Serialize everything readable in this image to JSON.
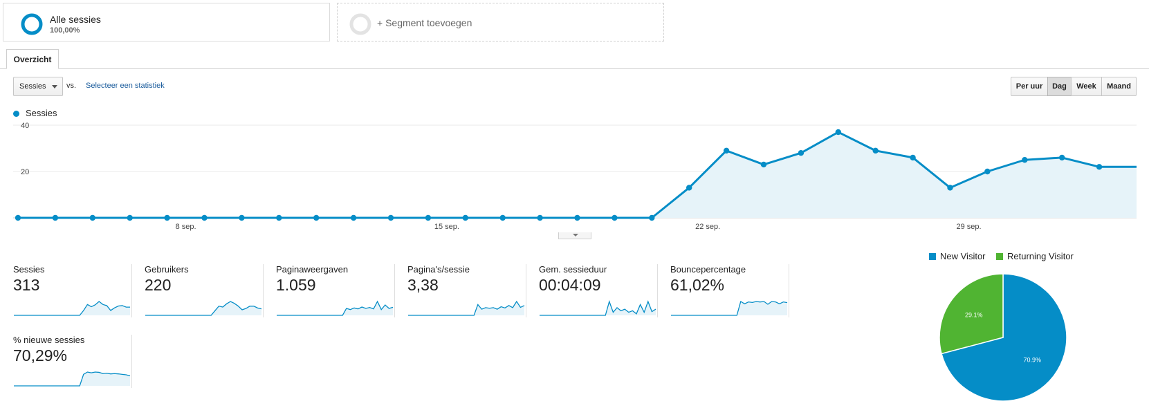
{
  "segments": {
    "active": {
      "name": "Alle sessies",
      "percent": "100,00%"
    },
    "add_label": "+ Segment toevoegen"
  },
  "tabs": {
    "overview": "Overzicht"
  },
  "controls": {
    "metric_select": "Sessies",
    "vs": "vs.",
    "select_stat": "Selecteer een statistiek",
    "periods": [
      "Per uur",
      "Dag",
      "Week",
      "Maand"
    ],
    "selected_period": "Dag"
  },
  "colors": {
    "primary": "#058dc7",
    "area_fill": "#e6f3f9",
    "returning": "#50b432"
  },
  "chart_data": [
    {
      "type": "area",
      "legend": [
        "Sessies"
      ],
      "yticks": [
        20,
        40
      ],
      "ylim": [
        0,
        40
      ],
      "xticks": [
        "8 sep.",
        "15 sep.",
        "22 sep.",
        "29 sep."
      ],
      "x": [
        "4 sep.",
        "5 sep.",
        "6 sep.",
        "7 sep.",
        "8 sep.",
        "9 sep.",
        "10 sep.",
        "11 sep.",
        "12 sep.",
        "13 sep.",
        "14 sep.",
        "15 sep.",
        "16 sep.",
        "17 sep.",
        "18 sep.",
        "19 sep.",
        "20 sep.",
        "21 sep.",
        "22 sep.",
        "23 sep.",
        "24 sep.",
        "25 sep.",
        "26 sep.",
        "27 sep.",
        "28 sep.",
        "29 sep.",
        "30 sep.",
        "1 okt.",
        "2 okt.",
        "3 okt.",
        "4 okt."
      ],
      "series": [
        {
          "name": "Sessies",
          "values": [
            0,
            0,
            0,
            0,
            0,
            0,
            0,
            0,
            0,
            0,
            0,
            0,
            0,
            0,
            0,
            0,
            0,
            0,
            13,
            29,
            23,
            28,
            37,
            29,
            26,
            13,
            20,
            25,
            26,
            22,
            22
          ]
        }
      ],
      "grid": true
    },
    {
      "type": "pie",
      "labels": [
        "New Visitor",
        "Returning Visitor"
      ],
      "values": [
        70.9,
        29.1
      ],
      "value_labels": [
        "70.9%",
        "29.1%"
      ],
      "colors": [
        "#058dc7",
        "#50b432"
      ],
      "legend": "top"
    }
  ],
  "scorecards": [
    {
      "name": "Sessies",
      "value": "313",
      "spark": [
        0,
        0,
        0,
        0,
        0,
        0,
        0,
        0,
        0,
        0,
        0,
        0,
        0,
        0,
        0,
        0,
        0,
        0,
        13,
        29,
        23,
        28,
        37,
        29,
        26,
        13,
        20,
        25,
        26,
        22,
        22
      ]
    },
    {
      "name": "Gebruikers",
      "value": "220",
      "spark": [
        0,
        0,
        0,
        0,
        0,
        0,
        0,
        0,
        0,
        0,
        0,
        0,
        0,
        0,
        0,
        0,
        0,
        0,
        10,
        20,
        18,
        25,
        30,
        26,
        20,
        12,
        15,
        20,
        20,
        16,
        14
      ]
    },
    {
      "name": "Paginaweergaven",
      "value": "1.059",
      "spark": [
        0,
        0,
        0,
        0,
        0,
        0,
        0,
        0,
        0,
        0,
        0,
        0,
        0,
        0,
        0,
        0,
        0,
        0,
        30,
        25,
        32,
        28,
        36,
        30,
        34,
        28,
        60,
        25,
        45,
        30,
        35
      ]
    },
    {
      "name": "Pagina's/sessie",
      "value": "3,38",
      "spark": [
        0,
        0,
        0,
        0,
        0,
        0,
        0,
        0,
        0,
        0,
        0,
        0,
        0,
        0,
        0,
        0,
        0,
        0,
        3.5,
        2,
        2.5,
        2.3,
        2.5,
        2,
        2.8,
        2.4,
        3.2,
        2.5,
        4.5,
        2.6,
        3.2
      ]
    },
    {
      "name": "Gem. sessieduur",
      "value": "00:04:09",
      "spark": [
        0,
        0,
        0,
        0,
        0,
        0,
        0,
        0,
        0,
        0,
        0,
        0,
        0,
        0,
        0,
        0,
        0,
        0,
        4.5,
        1,
        2.5,
        1.5,
        2,
        1,
        1.5,
        0.5,
        3.5,
        1,
        4.5,
        1.2,
        2
      ]
    },
    {
      "name": "Bouncepercentage",
      "value": "61,02%",
      "spark": [
        0,
        0,
        0,
        0,
        0,
        0,
        0,
        0,
        0,
        0,
        0,
        0,
        0,
        0,
        0,
        0,
        0,
        0,
        60,
        50,
        58,
        56,
        60,
        58,
        60,
        48,
        60,
        58,
        50,
        58,
        55
      ]
    },
    {
      "name": "% nieuwe sessies",
      "value": "70,29%",
      "spark": [
        0,
        0,
        0,
        0,
        0,
        0,
        0,
        0,
        0,
        0,
        0,
        0,
        0,
        0,
        0,
        0,
        0,
        0,
        75,
        90,
        85,
        90,
        88,
        80,
        82,
        78,
        80,
        78,
        75,
        72,
        65
      ]
    }
  ]
}
